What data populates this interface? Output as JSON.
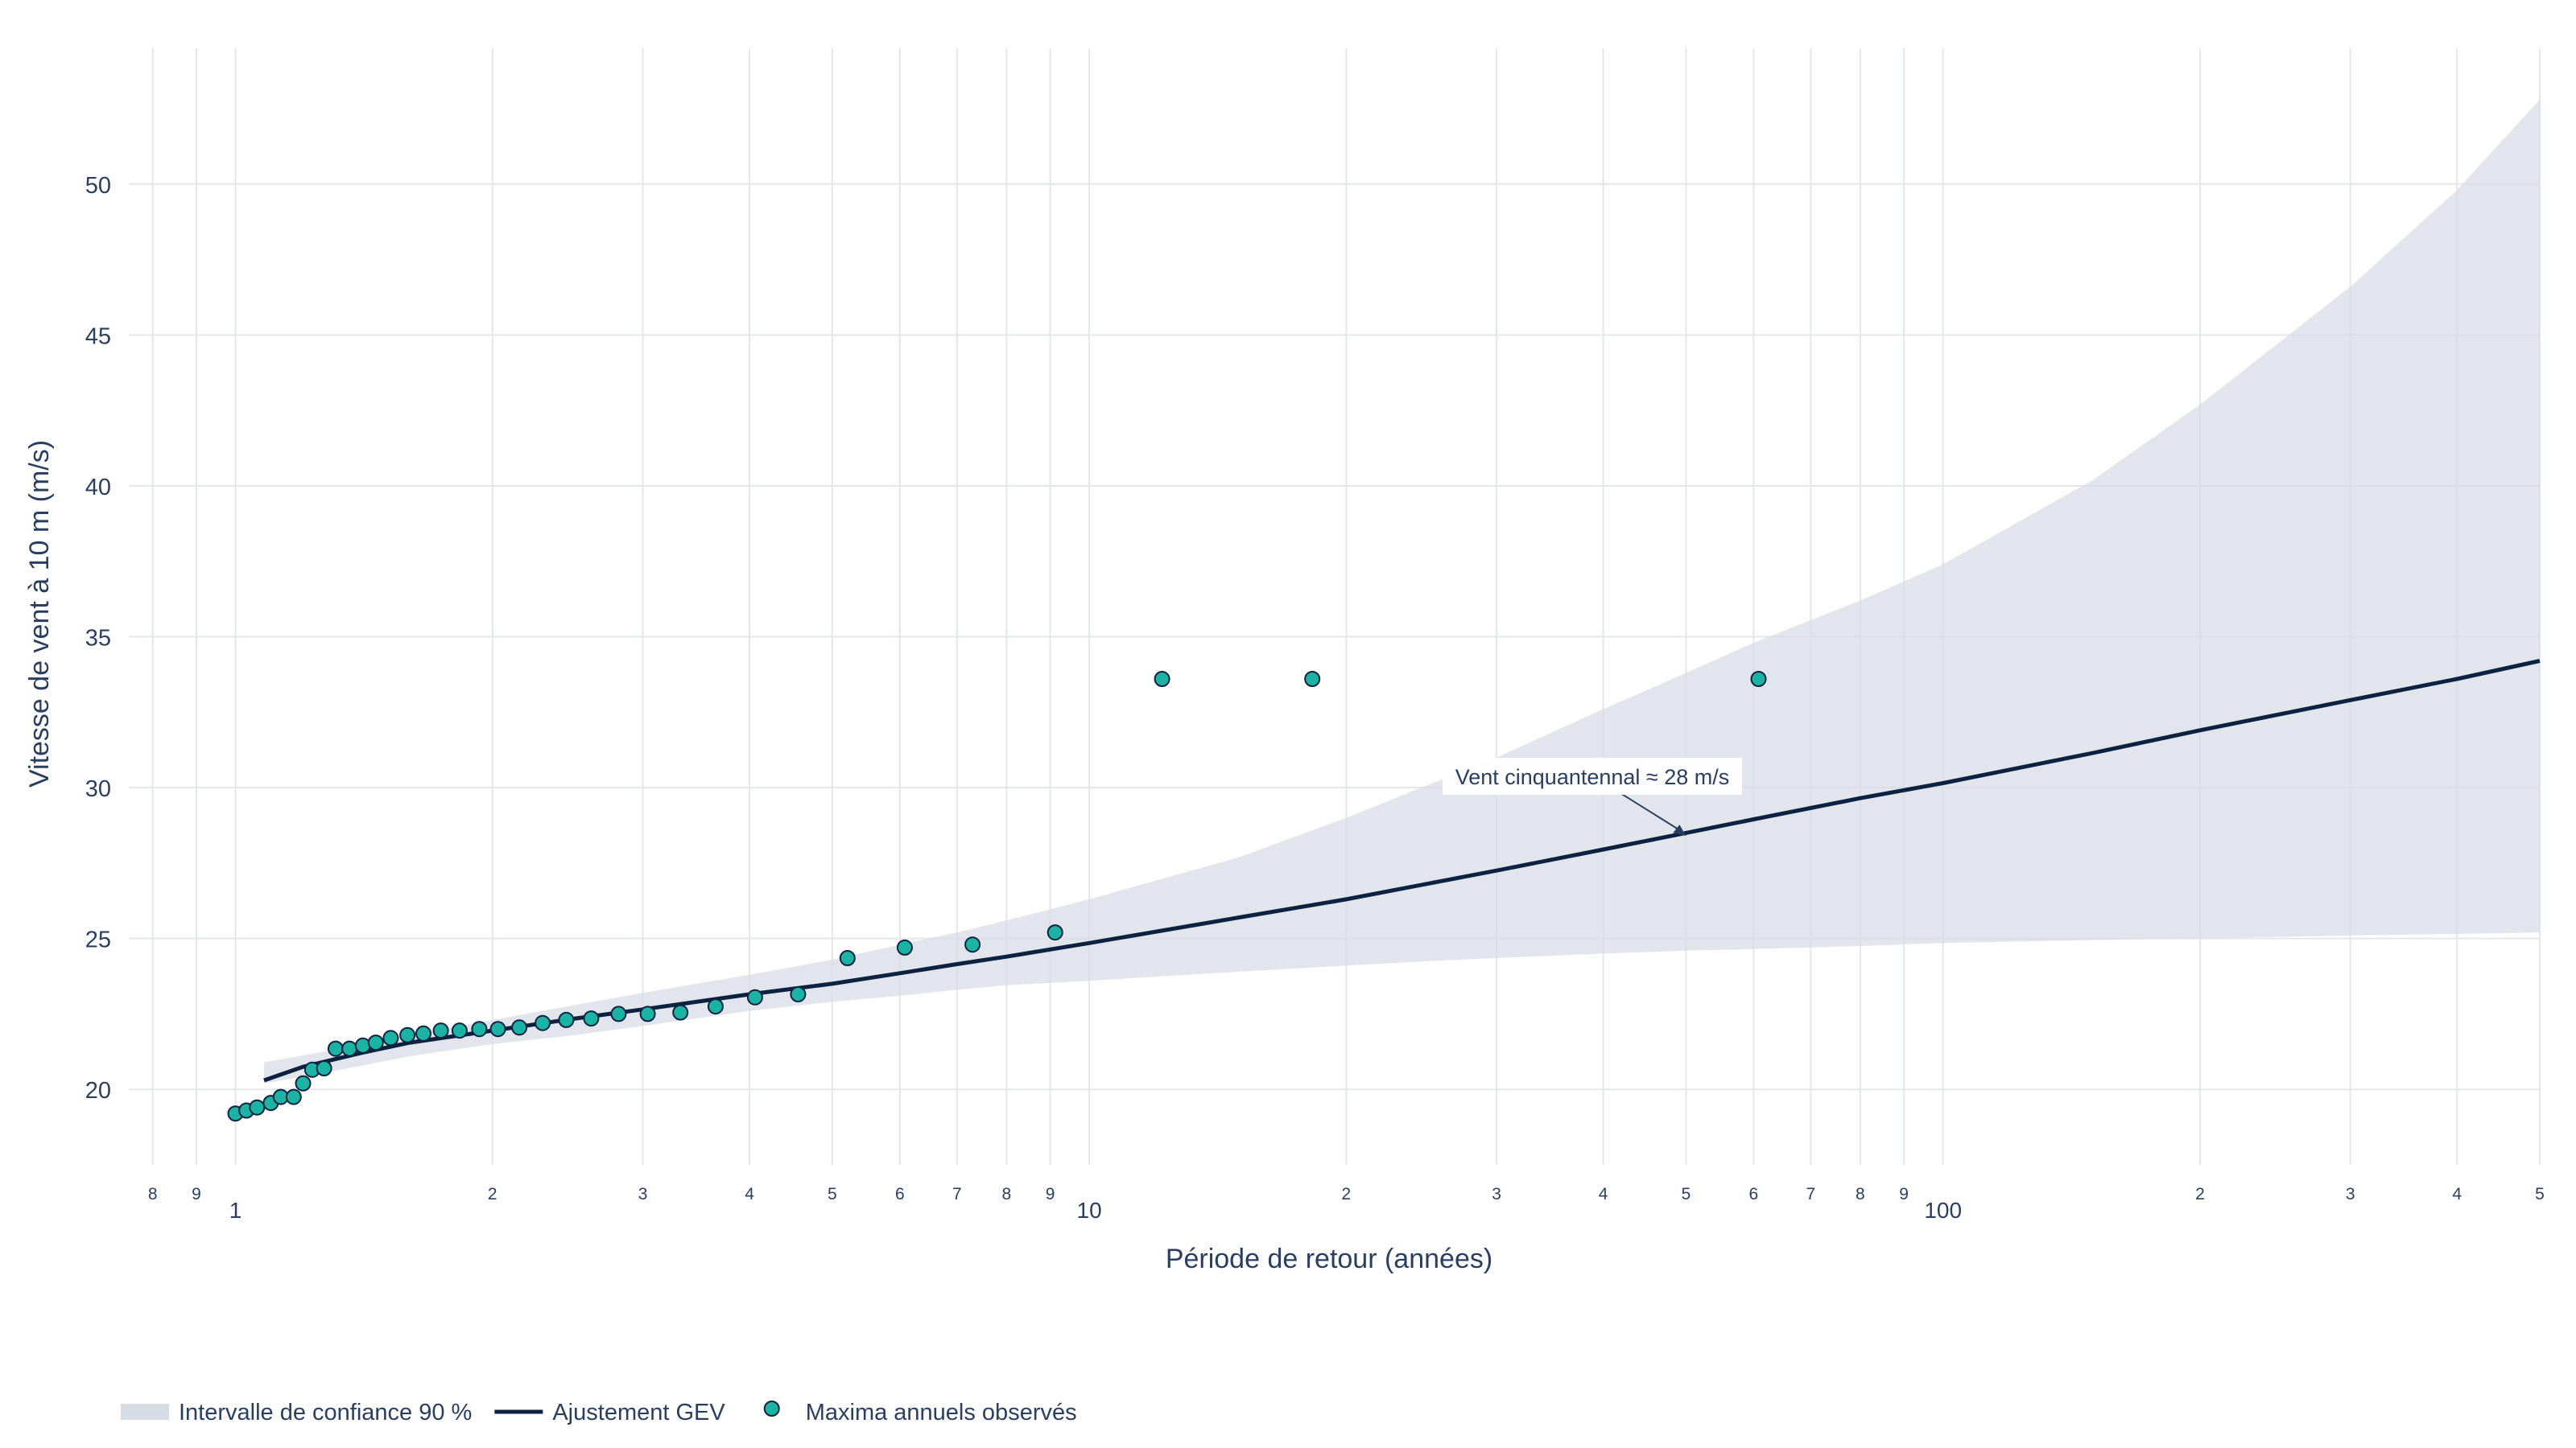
{
  "chart_data": {
    "type": "line",
    "xlabel": "Période de retour (années)",
    "ylabel": "Vitesse de vent à 10 m (m/s)",
    "x_scale": "log",
    "xlim": [
      0.75,
      500
    ],
    "ylim": [
      17.5,
      54.5
    ],
    "y_ticks": [
      20,
      25,
      30,
      35,
      40,
      45,
      50
    ],
    "x_major_ticks": [
      {
        "value": 1,
        "label": "1"
      },
      {
        "value": 10,
        "label": "10"
      },
      {
        "value": 100,
        "label": "100"
      }
    ],
    "x_minor_ticks": [
      {
        "value": 0.8,
        "label": "8"
      },
      {
        "value": 0.9,
        "label": "9"
      },
      {
        "value": 2,
        "label": "2"
      },
      {
        "value": 3,
        "label": "3"
      },
      {
        "value": 4,
        "label": "4"
      },
      {
        "value": 5,
        "label": "5"
      },
      {
        "value": 6,
        "label": "6"
      },
      {
        "value": 7,
        "label": "7"
      },
      {
        "value": 8,
        "label": "8"
      },
      {
        "value": 9,
        "label": "9"
      },
      {
        "value": 20,
        "label": "2"
      },
      {
        "value": 30,
        "label": "3"
      },
      {
        "value": 40,
        "label": "4"
      },
      {
        "value": 50,
        "label": "5"
      },
      {
        "value": 60,
        "label": "6"
      },
      {
        "value": 70,
        "label": "7"
      },
      {
        "value": 80,
        "label": "8"
      },
      {
        "value": 90,
        "label": "9"
      },
      {
        "value": 200,
        "label": "2"
      },
      {
        "value": 300,
        "label": "3"
      },
      {
        "value": 400,
        "label": "4"
      },
      {
        "value": 500,
        "label": "5"
      }
    ],
    "grid": true,
    "legend_position": "bottom-left",
    "series": [
      {
        "name": "Intervalle de confiance 90 %",
        "kind": "band",
        "color": "#d5dce4",
        "x": [
          1.08,
          1.3,
          1.6,
          2,
          2.5,
          3,
          4,
          5,
          6,
          7,
          8,
          10,
          15,
          20,
          25,
          30,
          40,
          50,
          60,
          80,
          100,
          150,
          200,
          300,
          400,
          500
        ],
        "lower": [
          20.2,
          20.6,
          21.1,
          21.5,
          21.8,
          22.1,
          22.6,
          22.9,
          23.1,
          23.3,
          23.45,
          23.6,
          23.9,
          24.1,
          24.25,
          24.35,
          24.5,
          24.6,
          24.65,
          24.75,
          24.85,
          24.95,
          25.0,
          25.1,
          25.15,
          25.2
        ],
        "upper": [
          20.9,
          21.3,
          21.8,
          22.3,
          22.8,
          23.2,
          23.8,
          24.3,
          24.8,
          25.2,
          25.6,
          26.3,
          27.7,
          29.0,
          30.1,
          31.0,
          32.6,
          33.8,
          34.8,
          36.2,
          37.4,
          40.2,
          42.7,
          46.6,
          49.8,
          52.8
        ]
      },
      {
        "name": "Ajustement GEV",
        "kind": "line",
        "color": "#0d2240",
        "x": [
          1.08,
          1.2,
          1.4,
          1.6,
          2,
          2.5,
          3,
          4,
          5,
          6,
          7,
          8,
          10,
          15,
          20,
          30,
          40,
          50,
          60,
          80,
          100,
          150,
          200,
          300,
          400,
          500
        ],
        "y": [
          20.3,
          20.75,
          21.2,
          21.55,
          21.95,
          22.35,
          22.65,
          23.15,
          23.5,
          23.85,
          24.15,
          24.4,
          24.85,
          25.7,
          26.3,
          27.25,
          27.95,
          28.5,
          28.95,
          29.65,
          30.15,
          31.15,
          31.9,
          32.9,
          33.6,
          34.2
        ]
      },
      {
        "name": "Maxima annuels observés",
        "kind": "scatter",
        "color": "#1bb3a4",
        "x": [
          1.0,
          1.03,
          1.06,
          1.1,
          1.13,
          1.17,
          1.2,
          1.23,
          1.27,
          1.31,
          1.36,
          1.41,
          1.46,
          1.52,
          1.59,
          1.66,
          1.74,
          1.83,
          1.93,
          2.03,
          2.15,
          2.29,
          2.44,
          2.61,
          2.81,
          3.04,
          3.32,
          3.65,
          4.06,
          4.56,
          5.21,
          6.08,
          7.3,
          9.12,
          12.17,
          18.25,
          60.8
        ],
        "y": [
          19.2,
          19.3,
          19.4,
          19.55,
          19.75,
          19.75,
          20.2,
          20.65,
          20.7,
          21.35,
          21.35,
          21.45,
          21.55,
          21.7,
          21.8,
          21.85,
          21.95,
          21.95,
          22.0,
          22.0,
          22.05,
          22.2,
          22.3,
          22.35,
          22.5,
          22.5,
          22.55,
          22.75,
          23.05,
          23.15,
          24.35,
          24.7,
          24.8,
          25.2,
          33.6,
          33.6,
          33.6
        ]
      }
    ],
    "annotations": [
      {
        "text": "Vent cinquantennal ≈ 28 m/s",
        "x": 50,
        "y": 28.4
      }
    ]
  },
  "legend": {
    "items": [
      {
        "label": "Intervalle de confiance 90 %",
        "symbol": "band",
        "color": "#d5dce4"
      },
      {
        "label": "Ajustement GEV",
        "symbol": "line",
        "color": "#0d2240"
      },
      {
        "label": "Maxima annuels observés",
        "symbol": "marker",
        "color": "#1bb3a4"
      }
    ]
  }
}
